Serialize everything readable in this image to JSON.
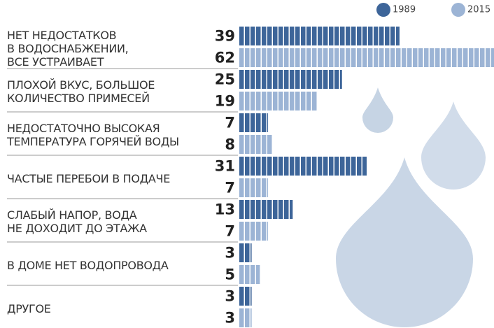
{
  "chart_data": {
    "type": "bar",
    "categories": [
      "НЕТ НЕДОСТАТКОВ\nВ ВОДОСНАБЖЕНИИ,\nВСЕ УСТРАИВАЕТ",
      "ПЛОХОЙ ВКУС, БОЛЬШОЕ\nКОЛИЧЕСТВО ПРИМЕСЕЙ",
      "НЕДОСТАТОЧНО ВЫСОКАЯ\nТЕМПЕРАТУРА ГОРЯЧЕЙ ВОДЫ",
      "ЧАСТЫЕ ПЕРЕБОИ В ПОДАЧЕ",
      "СЛАБЫЙ НАПОР, ВОДА\nНЕ ДОХОДИТ ДО ЭТАЖА",
      "В ДОМЕ НЕТ ВОДОПРОВОДА",
      "ДРУГОЕ"
    ],
    "series": [
      {
        "name": "1989",
        "color": "#3d6599",
        "values": [
          39,
          25,
          7,
          31,
          13,
          3,
          3
        ]
      },
      {
        "name": "2015",
        "color": "#9cb4d5",
        "values": [
          62,
          19,
          8,
          7,
          7,
          5,
          3
        ]
      }
    ]
  }
}
